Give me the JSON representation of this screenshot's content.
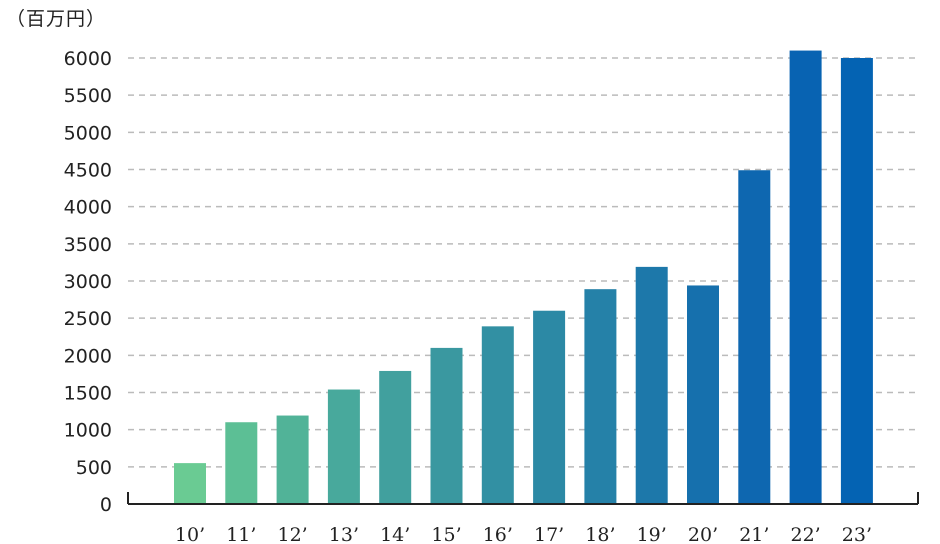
{
  "chart_data": {
    "type": "bar",
    "unit_label": "（百万円）",
    "categories": [
      "10’",
      "11’",
      "12’",
      "13’",
      "14’",
      "15’",
      "16’",
      "17’",
      "18’",
      "19’",
      "20’",
      "21’",
      "22’",
      "23’"
    ],
    "values": [
      550,
      1100,
      1190,
      1540,
      1790,
      2100,
      2390,
      2600,
      2890,
      3190,
      2940,
      4490,
      6100,
      6000
    ],
    "bar_colors": [
      "#6acb93",
      "#5cbf95",
      "#51b398",
      "#48a99c",
      "#41a09e",
      "#3a98a0",
      "#3290a3",
      "#2c89a5",
      "#2581a8",
      "#1d78aa",
      "#1670ad",
      "#0e67b0",
      "#0863b2",
      "#0463b3"
    ],
    "ylim": [
      0,
      6000
    ],
    "yticks": [
      0,
      500,
      1000,
      1500,
      2000,
      2500,
      3000,
      3500,
      4000,
      4500,
      5000,
      5500,
      6000
    ],
    "grid": true,
    "grid_color": "#bbbbbb",
    "axis_color": "#222222",
    "legend": "none"
  }
}
